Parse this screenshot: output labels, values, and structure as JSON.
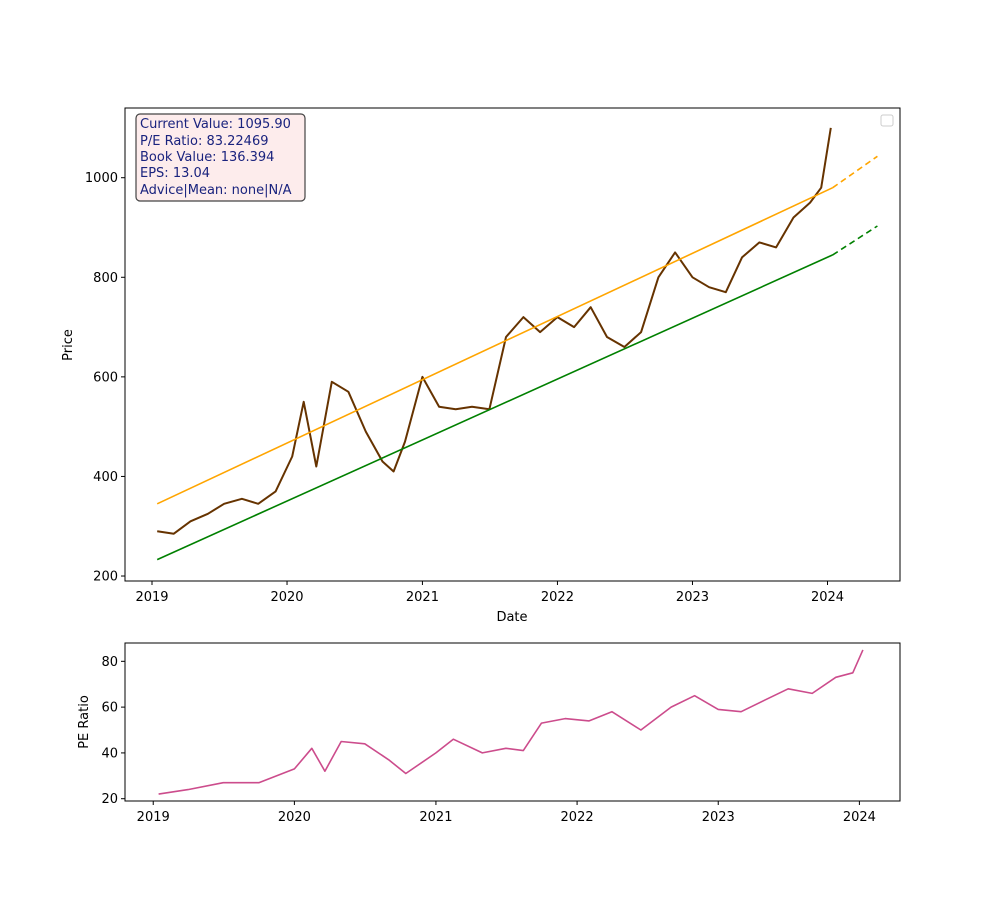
{
  "chart_data": [
    {
      "type": "line",
      "xlabel": "Date",
      "ylabel": "Price",
      "xlim": [
        "2018-10-20",
        "2024-07-15"
      ],
      "ylim": [
        190,
        1140
      ],
      "x_ticks": [
        "2019",
        "2020",
        "2021",
        "2022",
        "2023",
        "2024"
      ],
      "y_ticks": [
        200,
        400,
        600,
        800,
        1000
      ],
      "grid": false,
      "legend": {
        "placement": "top-right",
        "entries": []
      },
      "info_box": {
        "lines": [
          "Current Value: 1095.90",
          "P/E Ratio: 83.22469",
          "Book Value: 136.394",
          "EPS: 13.04",
          "Advice|Mean: none|N/A"
        ],
        "text_color": "#1a237e",
        "background": "#fdecec"
      },
      "series": [
        {
          "color": "#663300",
          "x": [
            "2019-01-15",
            "2019-03-01",
            "2019-04-15",
            "2019-06-01",
            "2019-07-15",
            "2019-09-01",
            "2019-10-15",
            "2019-12-01",
            "2020-01-15",
            "2020-02-15",
            "2020-03-20",
            "2020-05-01",
            "2020-06-15",
            "2020-08-01",
            "2020-09-15",
            "2020-10-15",
            "2020-11-15",
            "2021-01-01",
            "2021-02-15",
            "2021-04-01",
            "2021-05-15",
            "2021-07-01",
            "2021-08-15",
            "2021-10-01",
            "2021-11-15",
            "2022-01-01",
            "2022-02-15",
            "2022-04-01",
            "2022-05-15",
            "2022-07-01",
            "2022-08-15",
            "2022-10-01",
            "2022-11-15",
            "2023-01-01",
            "2023-02-15",
            "2023-04-01",
            "2023-05-15",
            "2023-07-01",
            "2023-08-15",
            "2023-10-01",
            "2023-11-15",
            "2023-12-15",
            "2024-01-10"
          ],
          "y": [
            290,
            285,
            310,
            325,
            345,
            355,
            345,
            370,
            440,
            550,
            420,
            590,
            570,
            490,
            430,
            410,
            470,
            600,
            540,
            535,
            540,
            535,
            680,
            720,
            690,
            720,
            700,
            740,
            680,
            660,
            690,
            800,
            850,
            800,
            780,
            770,
            840,
            870,
            860,
            920,
            950,
            980,
            1100
          ]
        },
        {
          "color": "#ffa500",
          "x": [
            "2019-01-15",
            "2024-01-15"
          ],
          "y": [
            345,
            980
          ]
        },
        {
          "color": "#ffa500",
          "dashed": true,
          "x": [
            "2024-01-15",
            "2024-05-15"
          ],
          "y": [
            980,
            1043
          ]
        },
        {
          "color": "#008000",
          "x": [
            "2019-01-15",
            "2024-01-15"
          ],
          "y": [
            233,
            845
          ]
        },
        {
          "color": "#008000",
          "dashed": true,
          "x": [
            "2024-01-15",
            "2024-05-15"
          ],
          "y": [
            845,
            903
          ]
        }
      ]
    },
    {
      "type": "line",
      "xlabel": "",
      "ylabel": "PE Ratio",
      "xlim": [
        "2018-10-20",
        "2024-04-15"
      ],
      "ylim": [
        19,
        88
      ],
      "x_ticks": [
        "2019",
        "2020",
        "2021",
        "2022",
        "2023",
        "2024"
      ],
      "y_ticks": [
        20,
        40,
        60,
        80
      ],
      "grid": false,
      "series": [
        {
          "color": "#cc4c8c",
          "x": [
            "2019-01-15",
            "2019-04-01",
            "2019-07-01",
            "2019-10-01",
            "2020-01-01",
            "2020-02-15",
            "2020-03-20",
            "2020-05-01",
            "2020-07-01",
            "2020-09-01",
            "2020-10-15",
            "2021-01-01",
            "2021-02-15",
            "2021-05-01",
            "2021-07-01",
            "2021-08-15",
            "2021-10-01",
            "2021-12-01",
            "2022-02-01",
            "2022-04-01",
            "2022-06-15",
            "2022-09-01",
            "2022-11-01",
            "2023-01-01",
            "2023-03-01",
            "2023-05-01",
            "2023-07-01",
            "2023-09-01",
            "2023-11-01",
            "2023-12-15",
            "2024-01-10"
          ],
          "y": [
            22,
            24,
            27,
            27,
            33,
            42,
            32,
            45,
            44,
            37,
            31,
            40,
            46,
            40,
            42,
            41,
            53,
            55,
            54,
            58,
            50,
            60,
            65,
            59,
            58,
            63,
            68,
            66,
            73,
            75,
            85
          ]
        }
      ]
    }
  ]
}
